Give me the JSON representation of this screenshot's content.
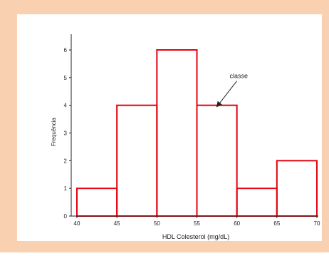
{
  "colors": {
    "frame": "#f9d1b0",
    "panel": "#ffffff",
    "bar_stroke": "#e3000f",
    "axis": "#222222"
  },
  "chart_data": {
    "type": "histogram",
    "title": "",
    "xlabel": "HDL Colesterol (mg/dL)",
    "ylabel": "Frequência",
    "xlim": [
      40,
      70
    ],
    "ylim": [
      0,
      6
    ],
    "x_ticks": [
      40,
      45,
      50,
      55,
      60,
      65,
      70
    ],
    "y_ticks": [
      0,
      1,
      2,
      3,
      4,
      5,
      6
    ],
    "bins": [
      {
        "start": 40,
        "end": 45,
        "value": 1
      },
      {
        "start": 45,
        "end": 50,
        "value": 4
      },
      {
        "start": 50,
        "end": 55,
        "value": 6
      },
      {
        "start": 55,
        "end": 60,
        "value": 4
      },
      {
        "start": 60,
        "end": 65,
        "value": 1
      },
      {
        "start": 65,
        "end": 70,
        "value": 2
      }
    ],
    "annotation": {
      "text": "classe",
      "target_bin": 3
    },
    "grid": false,
    "legend": "none"
  }
}
